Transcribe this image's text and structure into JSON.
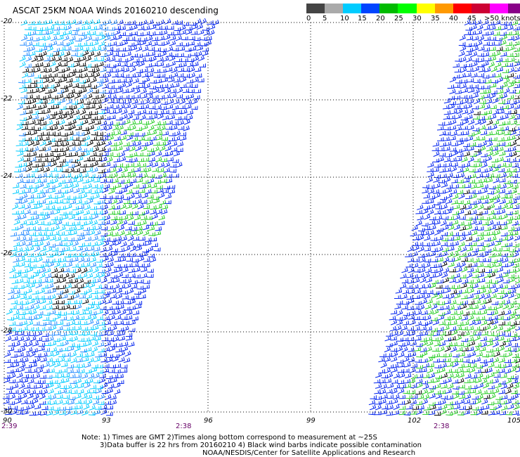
{
  "title": "ASCAT 25KM NOAA Winds 20160210 descending",
  "scale": {
    "colors": [
      "#444444",
      "#aaaaaa",
      "#00ccff",
      "#0044ff",
      "#00bb00",
      "#00ff00",
      "#ffff00",
      "#ff9900",
      "#ff0000",
      "#cc0033",
      "#ff00ff",
      "#880088",
      "#330066"
    ],
    "labels": [
      "0",
      "5",
      "10",
      "15",
      "20",
      "25",
      "30",
      "35",
      "40",
      "45",
      ">50 knots"
    ]
  },
  "lat_labels": [
    "-20",
    "-22",
    "-24",
    "-26",
    "-28",
    "-30"
  ],
  "lon_labels": [
    "90",
    "93",
    "96",
    "99",
    "102",
    "105"
  ],
  "time_labels": [
    "2:39",
    "2:38",
    "2:38"
  ],
  "notes": {
    "line1": "Note: 1) Times are GMT 2)Times along bottom correspond to measurement at ~25S",
    "line2": "3)Data buffer is 22 hrs from 20160210 4) Black wind barbs indicate possible contamination",
    "line3": "NOAA/NESDIS/Center for Satellite Applications and Research"
  },
  "colors": {
    "barb_cyan": "#00ccff",
    "barb_lightblue": "#2288ff",
    "barb_blue": "#0022ee",
    "barb_green": "#22cc22",
    "barb_black": "#000000",
    "time_purple": "#660066"
  }
}
